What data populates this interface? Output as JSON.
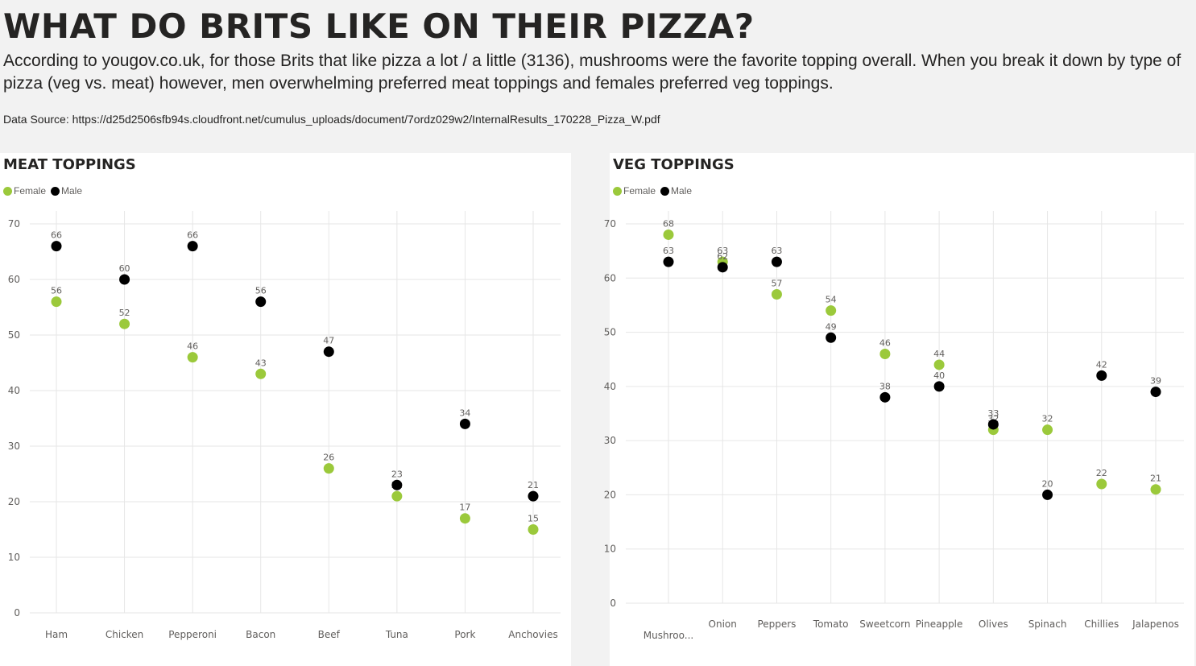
{
  "header": {
    "title": "WHAT DO BRITS LIKE ON THEIR PIZZA?",
    "subtitle": "According to yougov.co.uk, for those Brits that like pizza a lot / a little (3136), mushrooms were the favorite topping overall.  When you break it down by type of pizza (veg vs. meat) however, men overwhelming preferred meat toppings and females preferred veg toppings.",
    "source": "Data Source: https://d25d2506sfb94s.cloudfront.net/cumulus_uploads/document/7ordz029w2/InternalResults_170228_Pizza_W.pdf"
  },
  "colors": {
    "female": "#9bc93b",
    "male": "#000000",
    "grid": "#e6e6e6",
    "axis_text": "#605e5c",
    "label_text": "#605e5c"
  },
  "legend": {
    "female": "Female",
    "male": "Male"
  },
  "chart_data": [
    {
      "type": "scatter",
      "title": "MEAT TOPPINGS",
      "categories": [
        "Ham",
        "Chicken",
        "Pepperoni",
        "Bacon",
        "Beef",
        "Tuna",
        "Pork",
        "Anchovies"
      ],
      "series": [
        {
          "name": "Female",
          "values": [
            56,
            52,
            46,
            43,
            26,
            21,
            17,
            15
          ]
        },
        {
          "name": "Male",
          "values": [
            66,
            60,
            66,
            56,
            47,
            23,
            34,
            21
          ]
        }
      ],
      "ylim": [
        0,
        70
      ],
      "yticks": [
        0,
        10,
        20,
        30,
        40,
        50,
        60,
        70
      ],
      "grid": true,
      "legend": "top-left"
    },
    {
      "type": "scatter",
      "title": "VEG TOPPINGS",
      "categories": [
        "Mushroo...",
        "Onion",
        "Peppers",
        "Tomato",
        "Sweetcorn",
        "Pineapple",
        "Olives",
        "Spinach",
        "Chillies",
        "Jalapenos"
      ],
      "series": [
        {
          "name": "Female",
          "values": [
            68,
            63,
            57,
            54,
            46,
            44,
            32,
            32,
            22,
            21
          ]
        },
        {
          "name": "Male",
          "values": [
            63,
            62,
            63,
            49,
            38,
            40,
            33,
            20,
            42,
            39
          ]
        }
      ],
      "ylim": [
        0,
        70
      ],
      "yticks": [
        0,
        10,
        20,
        30,
        40,
        50,
        60,
        70
      ],
      "grid": true,
      "legend": "top-left"
    }
  ]
}
